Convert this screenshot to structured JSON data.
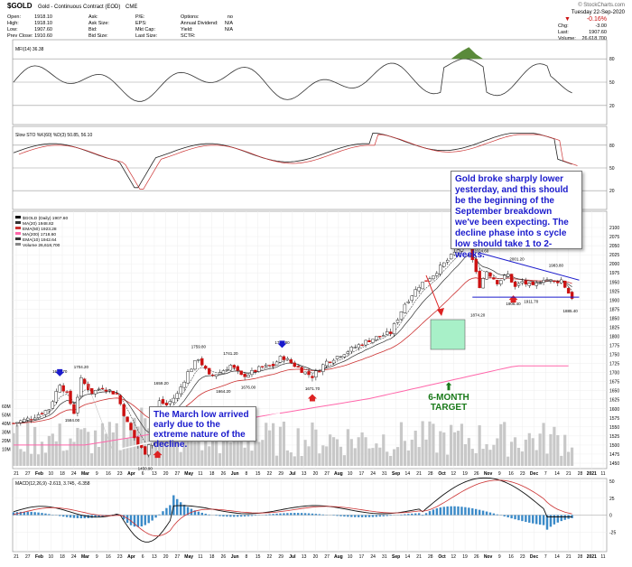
{
  "header": {
    "symbol": "$GOLD",
    "description": "Gold - Continuous Contract (EOD)",
    "exchange": "CME",
    "watermark": "© StockCharts.com",
    "date": "Tuesday 22-Sep-2020",
    "change_pct": "-0.16%",
    "quote_rows": [
      {
        "label": "Open:",
        "value": "1918.10"
      },
      {
        "label": "High:",
        "value": "1918.10"
      },
      {
        "label": "Low:",
        "value": "1907.60"
      },
      {
        "label": "Prev Close:",
        "value": "1910.60"
      }
    ],
    "quote_rows2": [
      {
        "label": "Ask:",
        "value": ""
      },
      {
        "label": "Ask Size:",
        "value": ""
      },
      {
        "label": "Bid:",
        "value": ""
      },
      {
        "label": "Bid Size:",
        "value": ""
      }
    ],
    "quote_rows3": [
      {
        "label": "P/E:",
        "value": ""
      },
      {
        "label": "EPS:",
        "value": ""
      },
      {
        "label": "Mkt Cap:",
        "value": ""
      },
      {
        "label": "Last Size:",
        "value": ""
      }
    ],
    "quote_rows4": [
      {
        "label": "Options:",
        "value": "no"
      },
      {
        "label": "Annual Dividend:",
        "value": "N/A"
      },
      {
        "label": "Yield:",
        "value": "N/A"
      },
      {
        "label": "SCTR:",
        "value": ""
      }
    ],
    "right_rows": [
      {
        "label": "Chg:",
        "value": "-3.00"
      },
      {
        "label": "Last:",
        "value": "1907.60"
      },
      {
        "label": "Volume:",
        "value": "26,618,700"
      }
    ]
  },
  "colors": {
    "up": "#2a7a2a",
    "down": "#cc1111",
    "price_line": "#000000",
    "ma20": "#333333",
    "ema50": "#cc3333",
    "ma200": "#ff66aa",
    "annotation_text": "#1a1acc",
    "target_box": "#a8f0c8",
    "target_label": "#1a7a1a",
    "macd_hist": "#3a8ac8"
  },
  "chart_data": [
    {
      "type": "line",
      "panel": "MFI",
      "label": "MFI(14) 36.38",
      "ylim": [
        0,
        100
      ],
      "levels": [
        80,
        50,
        20
      ],
      "tick_labels": [
        "80",
        "50",
        "20"
      ],
      "last_value": 36.38
    },
    {
      "type": "line",
      "panel": "Slow Stochastic",
      "label": "Slow STO %K(60) %D(3) 50.85, 56.10",
      "ylim": [
        0,
        100
      ],
      "levels": [
        80,
        50,
        20
      ],
      "tick_labels": [
        "80",
        "50",
        "20"
      ],
      "k_last": 50.85,
      "d_last": 56.1
    },
    {
      "type": "candlestick",
      "panel": "Price",
      "legend": [
        {
          "label": "$GOLD (Daily) 1907.60",
          "color": "#000000"
        },
        {
          "label": "MA(20) 1948.82",
          "color": "#333333"
        },
        {
          "label": "EMA(50) 1923.28",
          "color": "#cc3333"
        },
        {
          "label": "MA(200) 1718.60",
          "color": "#ff66aa"
        },
        {
          "label": "EMA(10) 1942.64",
          "color": "#333333"
        },
        {
          "label": "Volume 26,618,700",
          "color": "#888888"
        }
      ],
      "ylim": [
        1450,
        2125
      ],
      "y_ticks": [
        1450,
        1475,
        1500,
        1525,
        1550,
        1575,
        1600,
        1625,
        1650,
        1675,
        1700,
        1725,
        1750,
        1775,
        1800,
        1825,
        1850,
        1875,
        1900,
        1925,
        1950,
        1975,
        2000,
        2025,
        2050,
        2075,
        2100
      ],
      "volume_ticks": [
        "60M",
        "50M",
        "40M",
        "30M",
        "20M",
        "10M"
      ],
      "annotated_prices": [
        {
          "label": "1691.70",
          "x": 26,
          "y": 1691.7
        },
        {
          "label": "1704.20",
          "x": 38,
          "y": 1704.2
        },
        {
          "label": "1584.00",
          "x": 33,
          "y": 1584.0
        },
        {
          "label": "1659.20",
          "x": 83,
          "y": 1659.2
        },
        {
          "label": "1576.00",
          "x": 88,
          "y": 1576.0
        },
        {
          "label": "1759.80",
          "x": 104,
          "y": 1759.8
        },
        {
          "label": "1664.20",
          "x": 118,
          "y": 1664.2
        },
        {
          "label": "1741.20",
          "x": 122,
          "y": 1741.2
        },
        {
          "label": "1676.00",
          "x": 132,
          "y": 1676.0
        },
        {
          "label": "1770.80",
          "x": 151,
          "y": 1770.8
        },
        {
          "label": "1671.70",
          "x": 168,
          "y": 1671.7
        },
        {
          "label": "1450.90",
          "x": 74,
          "y": 1450.9
        },
        {
          "label": "2089.20",
          "x": 255,
          "y": 2089.2
        },
        {
          "label": "2024.60",
          "x": 263,
          "y": 2024.6
        },
        {
          "label": "1874.20",
          "x": 261,
          "y": 1874.2
        },
        {
          "label": "2001.20",
          "x": 283,
          "y": 2001.2
        },
        {
          "label": "1906.40",
          "x": 281,
          "y": 1906.4
        },
        {
          "label": "1911.70",
          "x": 291,
          "y": 1911.7
        },
        {
          "label": "1983.80",
          "x": 305,
          "y": 1983.8
        },
        {
          "label": "1885.40",
          "x": 313,
          "y": 1885.4
        }
      ],
      "down_arrows_x": [
        26,
        151,
        255
      ],
      "up_arrows_x": [
        81,
        168,
        281
      ]
    },
    {
      "type": "line",
      "panel": "MACD",
      "label": "MACD(12,26,9) -2.613, 3.745, -6.358",
      "macd": -2.613,
      "signal": 3.745,
      "histogram": -6.358,
      "y_ticks": [
        "50",
        "25",
        "0",
        "-25"
      ]
    }
  ],
  "x_axis_labels": [
    "21",
    "27",
    "Feb",
    "10",
    "18",
    "24",
    "Mar",
    "9",
    "16",
    "23",
    "Apr",
    "6",
    "13",
    "20",
    "27",
    "May",
    "11",
    "18",
    "26",
    "Jun",
    "8",
    "15",
    "22",
    "29",
    "Jul",
    "13",
    "20",
    "27",
    "Aug",
    "10",
    "17",
    "24",
    "31",
    "Sep",
    "14",
    "21",
    "28",
    "Oct",
    "12",
    "19",
    "26",
    "Nov",
    "9",
    "16",
    "23",
    "Dec",
    "7",
    "14",
    "21",
    "28",
    "2021",
    "11"
  ],
  "annotations": {
    "main": "Gold broke sharply lower yesterday, and this should be the beginning of the September breakdown we've been expecting.  The decline phase into s cycle low should take 1 to 2-weeks.",
    "march": "The March low arrived early due to the extreme nature of the decline.",
    "target": "6-MONTH TARGET"
  }
}
